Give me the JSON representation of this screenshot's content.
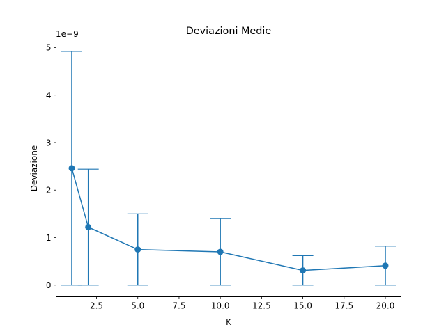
{
  "chart_data": {
    "type": "line",
    "title": "Deviazioni Medie",
    "xlabel": "K",
    "ylabel": "Deviazione",
    "y_scale_label": "1e−9",
    "xlim": [
      0.05,
      20.95
    ],
    "ylim": [
      -0.245,
      5.16
    ],
    "x_ticks": [
      2.5,
      5.0,
      7.5,
      10.0,
      12.5,
      15.0,
      17.5,
      20.0
    ],
    "x_tick_labels": [
      "2.5",
      "5.0",
      "7.5",
      "10.0",
      "12.5",
      "15.0",
      "17.5",
      "20.0"
    ],
    "y_ticks": [
      0,
      1,
      2,
      3,
      4,
      5
    ],
    "y_tick_labels": [
      "0",
      "1",
      "2",
      "3",
      "4",
      "5"
    ],
    "grid": false,
    "legend": null,
    "series_color": "#1f77b4",
    "series": [
      {
        "x": [
          1,
          2,
          5,
          10,
          15,
          20
        ],
        "values": [
          2.46,
          1.22,
          0.75,
          0.7,
          0.31,
          0.41
        ],
        "error_lower": [
          0,
          0,
          0,
          0,
          0,
          0
        ],
        "error_upper": [
          4.92,
          2.44,
          1.5,
          1.4,
          0.62,
          0.82
        ]
      }
    ]
  }
}
